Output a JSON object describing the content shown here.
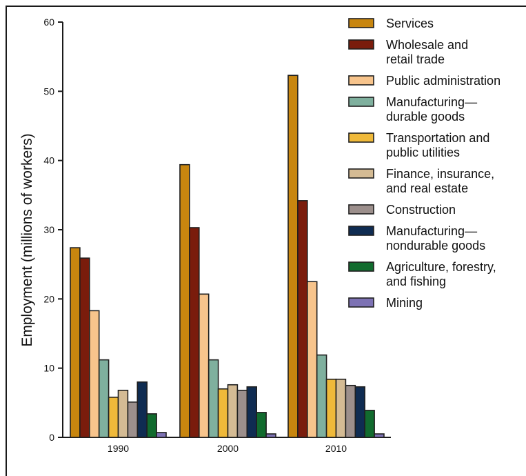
{
  "chart_data": {
    "type": "bar",
    "ylabel": "Employment (millions of workers)",
    "xlabel": "",
    "ylim": [
      0,
      60
    ],
    "yticks": [
      0,
      10,
      20,
      30,
      40,
      50,
      60
    ],
    "categories": [
      "1990",
      "2000",
      "2010"
    ],
    "legend_position": "top-right",
    "series": [
      {
        "name": "Services",
        "label_lines": [
          "Services"
        ],
        "color": "#c8860f",
        "values": [
          27.4,
          39.4,
          52.3
        ]
      },
      {
        "name": "Wholesale and retail trade",
        "label_lines": [
          "Wholesale and",
          "retail trade"
        ],
        "color": "#7a1c0c",
        "values": [
          25.9,
          30.3,
          34.2
        ]
      },
      {
        "name": "Public administration",
        "label_lines": [
          "Public administration"
        ],
        "color": "#f7c48c",
        "values": [
          18.3,
          20.7,
          22.5
        ]
      },
      {
        "name": "Manufacturing—durable goods",
        "label_lines": [
          "Manufacturing—",
          "durable goods"
        ],
        "color": "#7fb09e",
        "values": [
          11.2,
          11.2,
          11.9
        ]
      },
      {
        "name": "Transportation and public utilities",
        "label_lines": [
          "Transportation and",
          "public utilities"
        ],
        "color": "#efb93a",
        "values": [
          5.8,
          7.0,
          8.4
        ]
      },
      {
        "name": "Finance, insurance, and real estate",
        "label_lines": [
          "Finance, insurance,",
          "and real estate"
        ],
        "color": "#d4bb94",
        "values": [
          6.8,
          7.6,
          8.4
        ]
      },
      {
        "name": "Construction",
        "label_lines": [
          "Construction"
        ],
        "color": "#9c8f8c",
        "values": [
          5.1,
          6.8,
          7.5
        ]
      },
      {
        "name": "Manufacturing—nondurable goods",
        "label_lines": [
          "Manufacturing—",
          "nondurable goods"
        ],
        "color": "#0f2c52",
        "values": [
          8.0,
          7.3,
          7.3
        ]
      },
      {
        "name": "Agriculture, forestry, and fishing",
        "label_lines": [
          "Agriculture, forestry,",
          "and fishing"
        ],
        "color": "#116b2e",
        "values": [
          3.4,
          3.6,
          3.9
        ]
      },
      {
        "name": "Mining",
        "label_lines": [
          "Mining"
        ],
        "color": "#7d72b4",
        "values": [
          0.7,
          0.5,
          0.5
        ]
      }
    ]
  }
}
